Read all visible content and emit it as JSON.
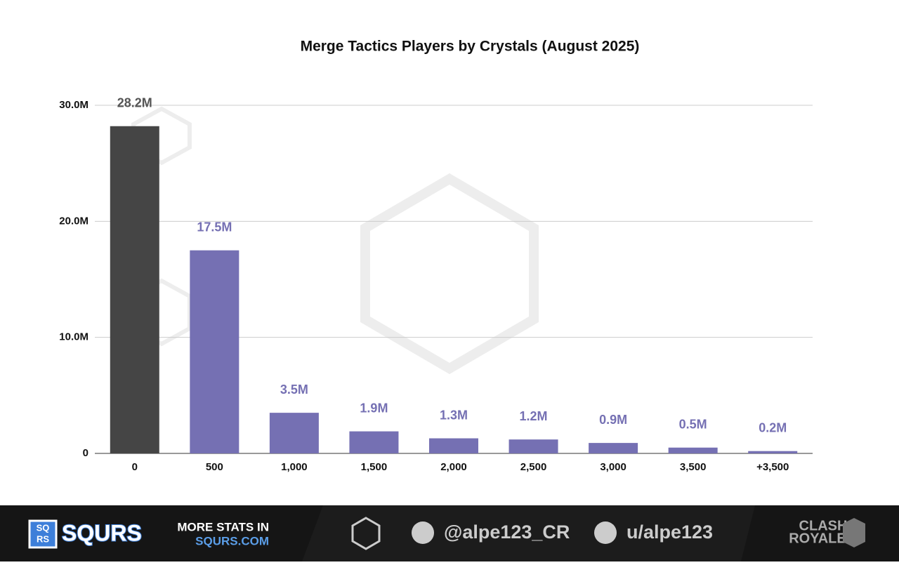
{
  "chart_data": {
    "type": "bar",
    "title": "Merge Tactics Players by Crystals (August 2025)",
    "categories": [
      "0",
      "500",
      "1,000",
      "1,500",
      "2,000",
      "2,500",
      "3,000",
      "3,500",
      "+3,500"
    ],
    "values": [
      28200000,
      17500000,
      3500000,
      1900000,
      1300000,
      1200000,
      900000,
      500000,
      200000
    ],
    "value_labels": [
      "28.2M",
      "17.5M",
      "3.5M",
      "1.9M",
      "1.3M",
      "1.2M",
      "0.9M",
      "0.5M",
      "0.2M"
    ],
    "colors": [
      "#454545",
      "#7570b3",
      "#7570b3",
      "#7570b3",
      "#7570b3",
      "#7570b3",
      "#7570b3",
      "#7570b3",
      "#7570b3"
    ],
    "ylim": [
      0,
      30000000
    ],
    "yticks": [
      0,
      {
        "value": 10000000,
        "label": "10.0M"
      },
      {
        "value": 20000000,
        "label": "20.0M"
      },
      {
        "value": 30000000,
        "label": "30.0M"
      }
    ],
    "grid": true
  },
  "footer": {
    "logo_icon": [
      "SQ",
      "RS"
    ],
    "brand": "SQURS",
    "promo": [
      "MORE STATS IN",
      "SQURS.COM"
    ],
    "twitter": "@alpe123_CR",
    "reddit": "u/alpe123",
    "game_logo": [
      "CLASH",
      "ROYALE"
    ]
  }
}
